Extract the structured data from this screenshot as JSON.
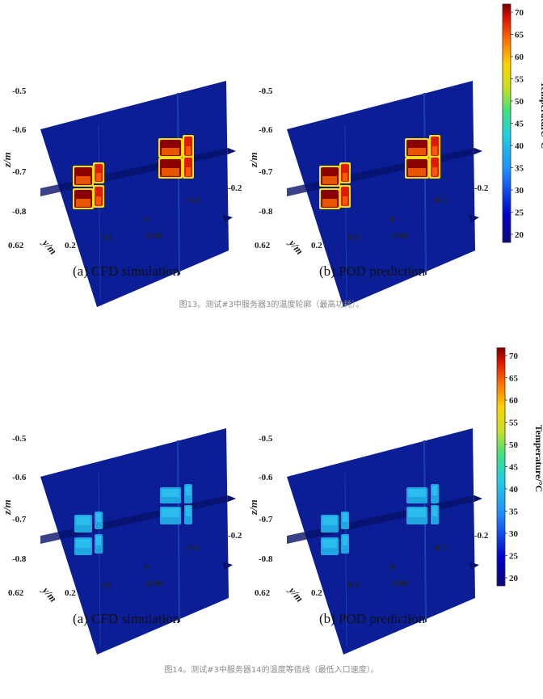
{
  "figures": [
    {
      "id": "fig13",
      "caption": "图13。测试#3中服务器3的温度轮廓（最高功耗）。",
      "intensity": "high",
      "colorbar_top_color": "#7a0000",
      "panels": [
        {
          "label": "(a) CFD simulation"
        },
        {
          "label": "(b) POD prediction"
        }
      ]
    },
    {
      "id": "fig14",
      "caption": "图14。测试#3中服务器14的温度等值线（最低入口速度）。",
      "intensity": "low",
      "colorbar_top_color": "#7a0000",
      "panels": [
        {
          "label": "(a) CFD simulation"
        },
        {
          "label": "(b) POD prediction"
        }
      ]
    }
  ],
  "axes": {
    "z_label": "z/m",
    "x_label": "x/m",
    "y_label": "y/m",
    "z_ticks": [
      "-0.5",
      "-0.6",
      "-0.7",
      "-0.8"
    ],
    "x_ticks": [
      "0.1",
      "0",
      "-0.1",
      "-0.2"
    ],
    "y_ticks": [
      "0.62",
      "0.2"
    ]
  },
  "colorbar": {
    "title": "Temperature/°C",
    "ticks": [
      "70",
      "65",
      "60",
      "55",
      "50",
      "45",
      "40",
      "35",
      "30",
      "25",
      "20"
    ]
  },
  "colors": {
    "background_plane": "#0b1e96",
    "hot_dark": "#8b0000",
    "hot_mid": "#e01a00",
    "hot_light": "#ff6a00",
    "warm": "#1fa6e0",
    "warm_light": "#30c8f0"
  }
}
